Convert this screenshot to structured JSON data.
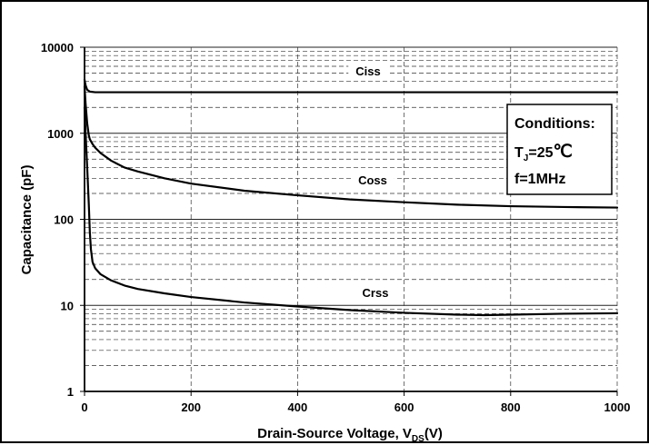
{
  "chart_data": {
    "type": "line",
    "xlabel": "Drain-Source Voltage, V",
    "xlabel_sub": "DS",
    "xlabel_unit": "(V)",
    "ylabel": "Capacitance (pF)",
    "xlim": [
      0,
      1000
    ],
    "ylim": [
      1,
      10000
    ],
    "yscale": "log",
    "grid": true,
    "x_ticks": [
      "0",
      "200",
      "400",
      "600",
      "800",
      "1000"
    ],
    "y_ticks": [
      "1",
      "10",
      "100",
      "1000",
      "10000"
    ],
    "series": [
      {
        "name": "Ciss",
        "x": [
          0,
          2,
          5,
          10,
          20,
          50,
          100,
          200,
          400,
          600,
          800,
          1000
        ],
        "y": [
          4200,
          3600,
          3200,
          3050,
          3000,
          3000,
          3000,
          3000,
          3000,
          3000,
          3000,
          3000
        ]
      },
      {
        "name": "Coss",
        "x": [
          0,
          2,
          5,
          8,
          10,
          15,
          20,
          30,
          50,
          75,
          100,
          150,
          200,
          300,
          400,
          500,
          600,
          700,
          800,
          900,
          1000
        ],
        "y": [
          3500,
          2200,
          1300,
          950,
          850,
          750,
          680,
          590,
          480,
          400,
          360,
          300,
          260,
          215,
          190,
          170,
          158,
          148,
          142,
          139,
          137
        ]
      },
      {
        "name": "Crss",
        "x": [
          0,
          2,
          5,
          8,
          10,
          12,
          15,
          20,
          30,
          50,
          75,
          100,
          150,
          200,
          300,
          400,
          500,
          600,
          700,
          750,
          800,
          900,
          1000
        ],
        "y": [
          2000,
          1000,
          400,
          150,
          70,
          45,
          32,
          27,
          23,
          19.5,
          17,
          15.5,
          13.8,
          12.5,
          10.8,
          9.7,
          8.8,
          8.2,
          7.8,
          7.7,
          7.8,
          8.0,
          8.1
        ]
      }
    ],
    "annotation": {
      "title": "Conditions:",
      "temp_prefix": "T",
      "temp_sub": "J",
      "temp_value": "=25",
      "temp_unit": "℃",
      "freq": "f=1MHz"
    },
    "colors": {
      "line": "#000000",
      "grid": "#333333",
      "background": "#ffffff"
    }
  }
}
